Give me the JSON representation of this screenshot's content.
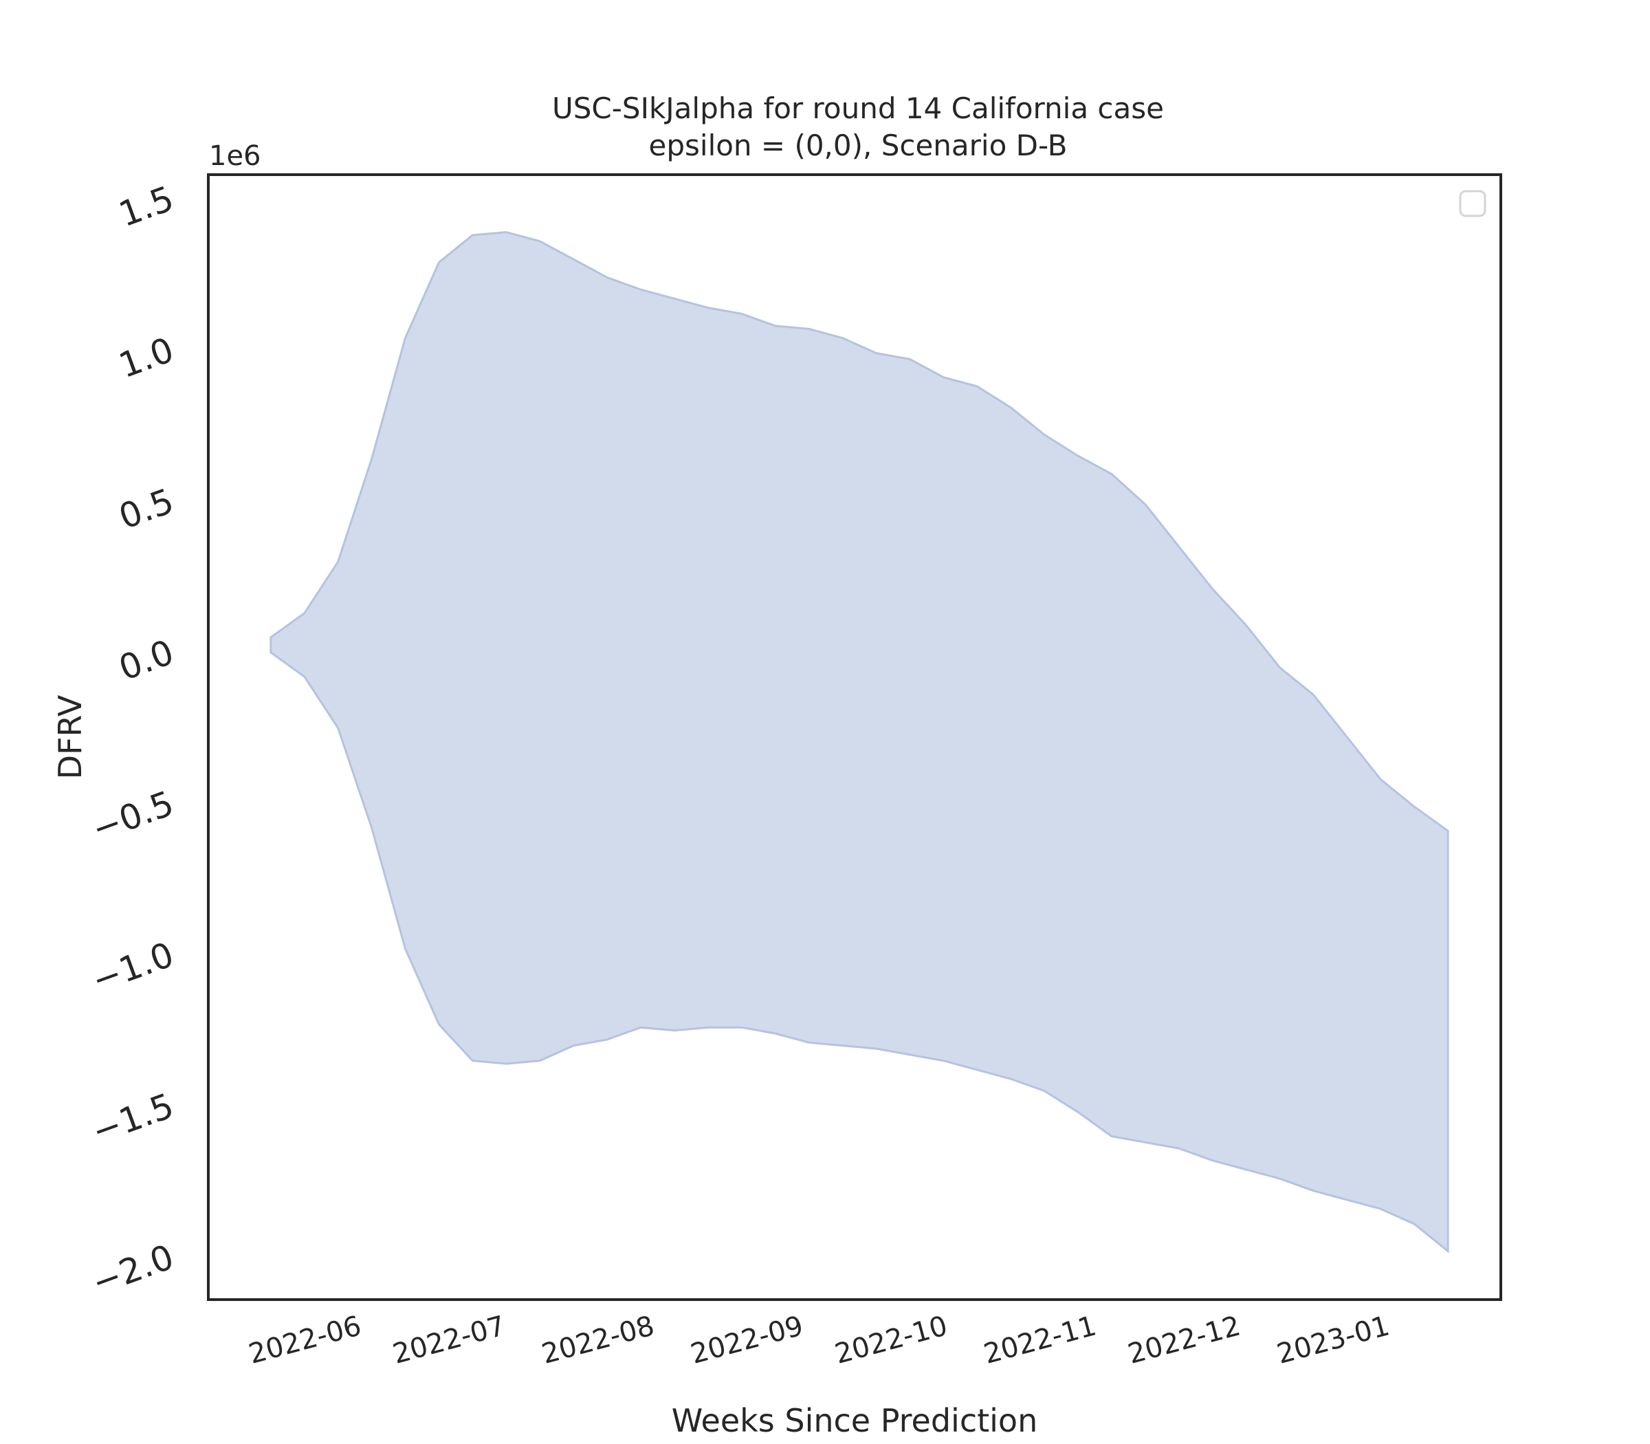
{
  "chart_data": {
    "type": "area",
    "title": "USC-SIkJalpha for round 14 California case",
    "subtitle": "epsilon = (0,0), Scenario D-B",
    "xlabel": "Weeks Since Prediction",
    "ylabel": "DFRV",
    "y_offset_label": "1e6",
    "x_tick_labels": [
      "2022-06",
      "2022-07",
      "2022-08",
      "2022-09",
      "2022-10",
      "2022-11",
      "2022-12",
      "2023-01"
    ],
    "y_tick_labels": [
      "1.5",
      "1.0",
      "0.5",
      "0.0",
      "−0.5",
      "−1.0",
      "−1.5",
      "−2.0"
    ],
    "y_ticks": [
      1.5,
      1.0,
      0.5,
      0.0,
      -0.5,
      -1.0,
      -1.5,
      -2.0
    ],
    "ylim": [
      -2.15,
      1.57
    ],
    "xlim": [
      "2022-05-01",
      "2023-01-25"
    ],
    "grid": false,
    "legend": "top-right",
    "fill_color": "#b4c3e0",
    "series": [
      {
        "x": [
          "2022-05-14",
          "2022-05-21",
          "2022-05-28",
          "2022-06-04",
          "2022-06-11",
          "2022-06-18",
          "2022-06-25",
          "2022-07-02",
          "2022-07-09",
          "2022-07-16",
          "2022-07-23",
          "2022-07-30",
          "2022-08-06",
          "2022-08-13",
          "2022-08-20",
          "2022-08-27",
          "2022-09-03",
          "2022-09-10",
          "2022-09-17",
          "2022-09-24",
          "2022-10-01",
          "2022-10-08",
          "2022-10-15",
          "2022-10-22",
          "2022-10-29",
          "2022-11-05",
          "2022-11-12",
          "2022-11-19",
          "2022-11-26",
          "2022-12-03",
          "2022-12-10",
          "2022-12-17",
          "2022-12-24",
          "2022-12-31",
          "2023-01-07"
        ],
        "upper": [
          0.04,
          0.12,
          0.29,
          0.63,
          1.03,
          1.28,
          1.37,
          1.38,
          1.35,
          1.29,
          1.23,
          1.19,
          1.16,
          1.13,
          1.11,
          1.07,
          1.06,
          1.03,
          0.98,
          0.96,
          0.9,
          0.87,
          0.8,
          0.71,
          0.64,
          0.58,
          0.48,
          0.34,
          0.2,
          0.08,
          -0.06,
          -0.15,
          -0.29,
          -0.43,
          -0.52
        ],
        "lower": [
          -0.01,
          -0.09,
          -0.26,
          -0.59,
          -0.99,
          -1.24,
          -1.36,
          -1.37,
          -1.36,
          -1.31,
          -1.29,
          -1.25,
          -1.26,
          -1.25,
          -1.25,
          -1.27,
          -1.3,
          -1.31,
          -1.32,
          -1.34,
          -1.36,
          -1.39,
          -1.42,
          -1.46,
          -1.53,
          -1.61,
          -1.63,
          -1.65,
          -1.69,
          -1.72,
          -1.75,
          -1.79,
          -1.82,
          -1.85,
          -1.9
        ]
      }
    ],
    "final_point": {
      "x": "2023-01-14",
      "upper": -0.6,
      "lower": -1.99
    }
  }
}
